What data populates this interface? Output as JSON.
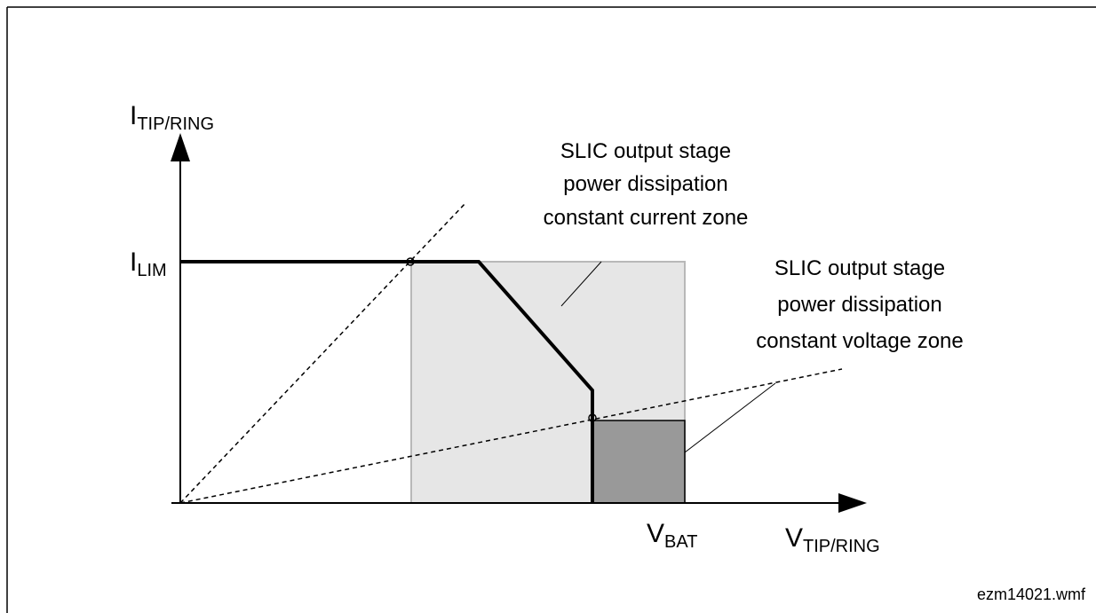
{
  "axes": {
    "y_label": {
      "main": "I",
      "sub": "TIP/RING"
    },
    "x_label": {
      "main": "V",
      "sub": "TIP/RING"
    }
  },
  "levels": {
    "current_limit": {
      "main": "I",
      "sub": "LIM"
    },
    "battery_voltage": {
      "main": "V",
      "sub": "BAT"
    }
  },
  "zones": [
    {
      "lines": [
        "SLIC output stage",
        "power dissipation",
        "constant current zone"
      ]
    },
    {
      "lines": [
        "SLIC output stage",
        "power dissipation",
        "constant voltage zone"
      ]
    }
  ],
  "file_name": "ezm14021.wmf"
}
